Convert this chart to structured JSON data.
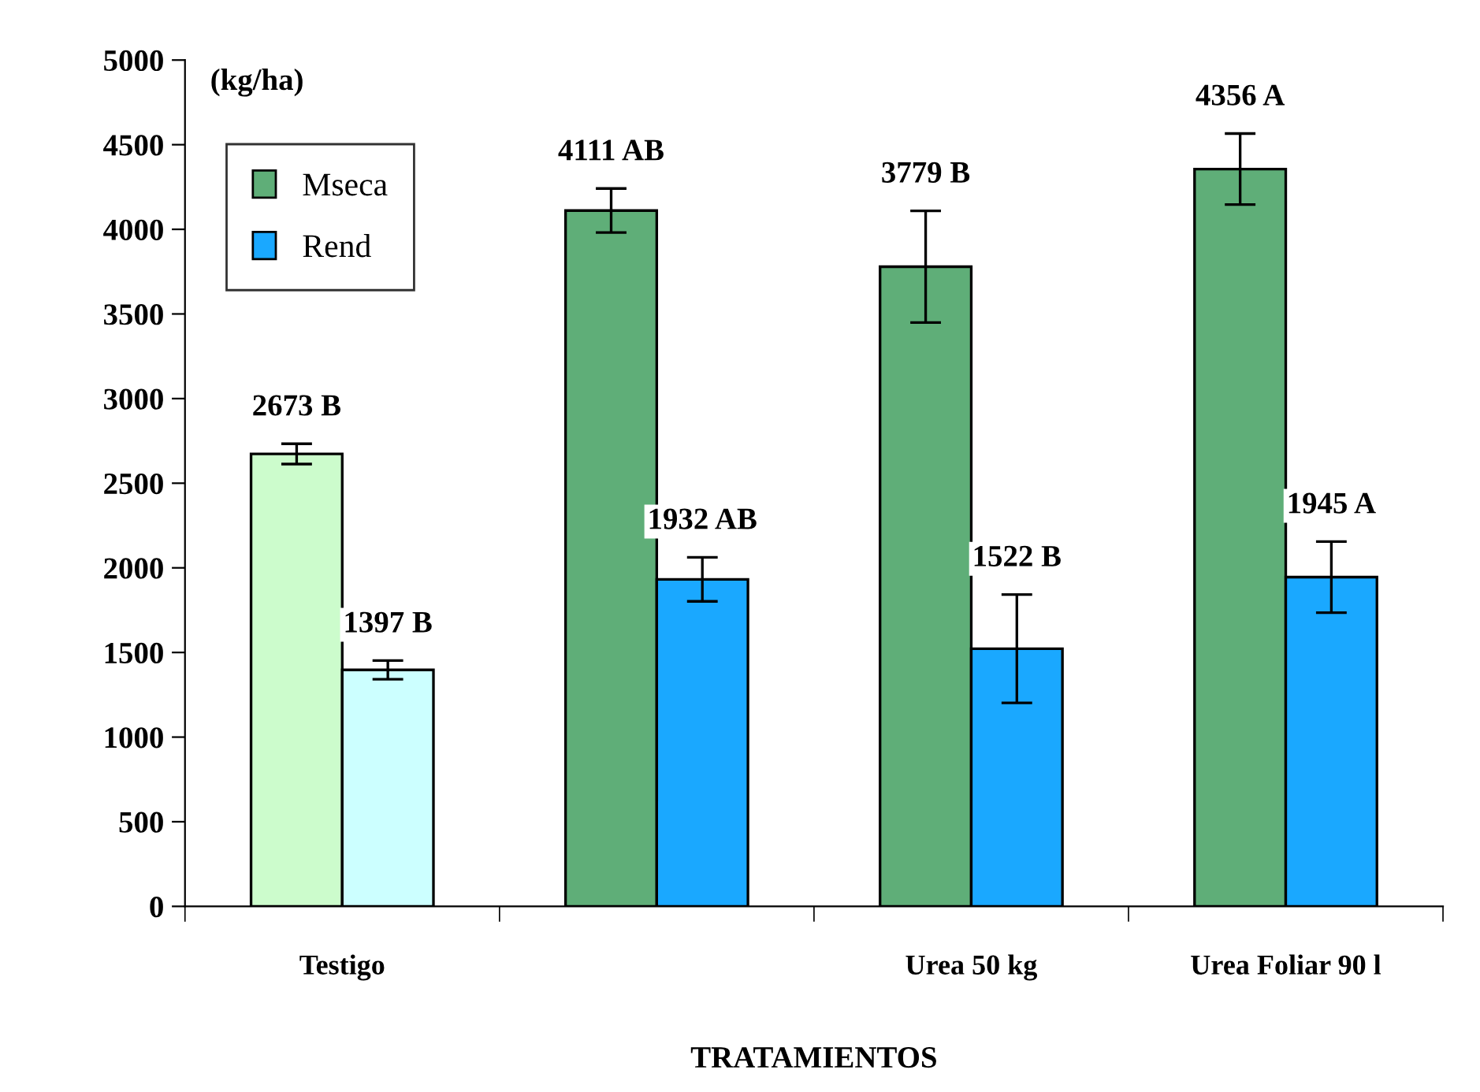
{
  "chart_data": {
    "type": "bar",
    "ylabel": "(kg/ha)",
    "xlabel": "TRATAMIENTOS",
    "categories": [
      "Testigo",
      null,
      "Urea 50 kg",
      "Urea Foliar 90 l"
    ],
    "series": [
      {
        "name": "Mseca",
        "color": "#5fae78",
        "colors": [
          "#ccfccc",
          "#5fae78",
          "#5fae78",
          "#5fae78"
        ],
        "values": [
          2673,
          4111,
          3779,
          4356
        ],
        "errors": [
          60,
          130,
          330,
          210
        ],
        "value_labels": [
          "2673 B",
          "4111 AB",
          "3779 B",
          "4356 A"
        ]
      },
      {
        "name": "Rend",
        "color": "#1aa8ff",
        "colors": [
          "#ccffff",
          "#1aa8ff",
          "#1aa8ff",
          "#1aa8ff"
        ],
        "values": [
          1397,
          1932,
          1522,
          1945
        ],
        "errors": [
          55,
          130,
          320,
          210
        ],
        "value_labels": [
          "1397 B",
          "1932 AB",
          "1522 B",
          "1945 A"
        ]
      }
    ],
    "ylim": [
      0,
      5000
    ],
    "yticks": [
      0,
      500,
      1000,
      1500,
      2000,
      2500,
      3000,
      3500,
      4000,
      4500,
      5000
    ],
    "grid": false,
    "legend": "top left"
  }
}
